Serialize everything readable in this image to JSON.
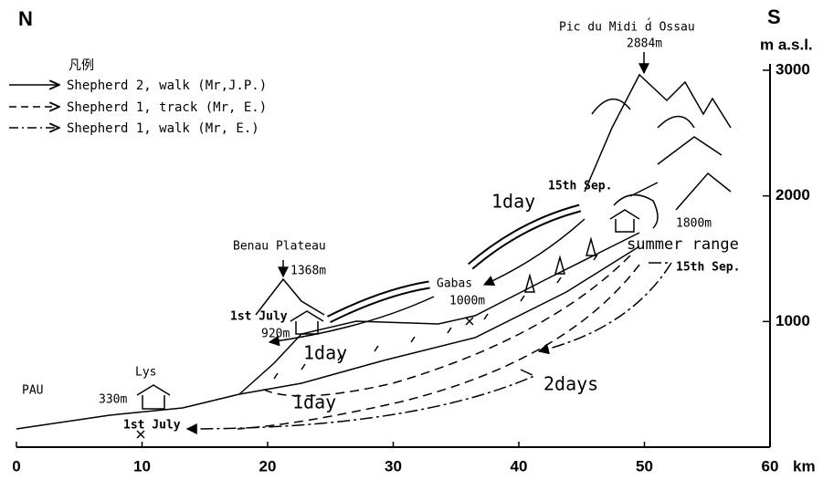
{
  "diagram": {
    "north": "N",
    "south": "S",
    "y_unit": "m a.s.l.",
    "x_unit": "km",
    "xlim": [
      0,
      60
    ],
    "xticks": [
      0,
      10,
      20,
      30,
      40,
      50,
      60
    ],
    "ylim": [
      0,
      3000
    ],
    "yticks": [
      1000,
      2000,
      3000
    ],
    "legend": {
      "title": "凡例",
      "entries": [
        "Shepherd 2, walk  (Mr,J.P.)",
        "Shepherd 1, track  (Mr, E.)",
        "Shepherd 1, walk  (Mr, E.)"
      ]
    },
    "labels": {
      "peak": "Pic du Midi d́ Ossau",
      "peak_alt": "2884m",
      "plateau": "Benau Plateau",
      "plateau_alt": "1368m",
      "july_plateau": "1st July",
      "plateau_hut_alt": "920m",
      "gabas": "Gabas",
      "gabas_alt": "1000m",
      "day_upper": "1day",
      "sep_upper": "15th Sep.",
      "summer_alt": "1800m",
      "summer_range": "summer range",
      "sep_lower": "15th Sep.",
      "day_middle": "1day",
      "day_lower": "1day",
      "two_days": "2days",
      "lys": "Lys",
      "lys_alt": "330m",
      "july_lys": "1st July",
      "pau": "PAU"
    }
  }
}
